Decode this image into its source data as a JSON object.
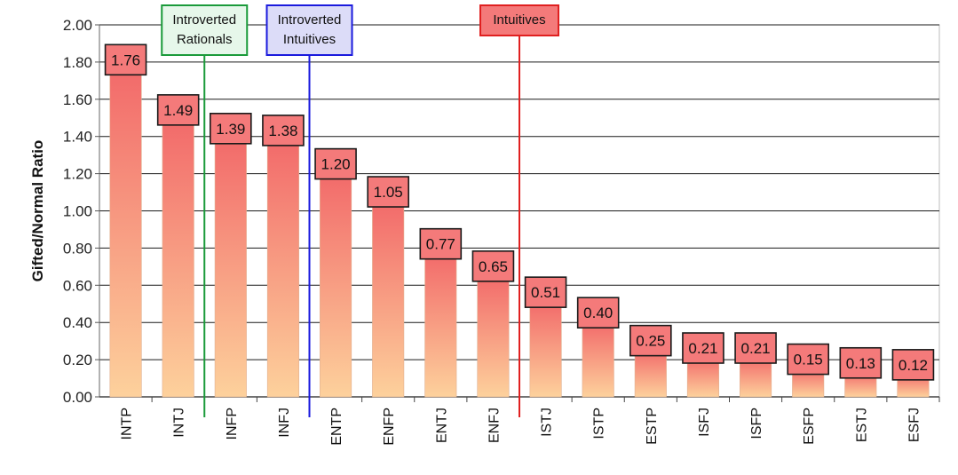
{
  "chart_data": {
    "type": "bar",
    "title": "",
    "xlabel": "",
    "ylabel": "Gifted/Normal Ratio",
    "ylim": [
      0,
      2.0
    ],
    "yticks": [
      "0.00",
      "0.20",
      "0.40",
      "0.60",
      "0.80",
      "1.00",
      "1.20",
      "1.40",
      "1.60",
      "1.80",
      "2.00"
    ],
    "grid": true,
    "categories": [
      "INTP",
      "INTJ",
      "INFP",
      "INFJ",
      "ENTP",
      "ENFP",
      "ENTJ",
      "ENFJ",
      "ISTJ",
      "ISTP",
      "ESTP",
      "ISFJ",
      "ISFP",
      "ESFP",
      "ESTJ",
      "ESFJ"
    ],
    "values": [
      1.76,
      1.49,
      1.39,
      1.38,
      1.2,
      1.05,
      0.77,
      0.65,
      0.51,
      0.4,
      0.25,
      0.21,
      0.21,
      0.15,
      0.13,
      0.12
    ],
    "value_labels": [
      "1.76",
      "1.49",
      "1.39",
      "1.38",
      "1.20",
      "1.05",
      "0.77",
      "0.65",
      "0.51",
      "0.40",
      "0.25",
      "0.21",
      "0.21",
      "0.15",
      "0.13",
      "0.12"
    ],
    "annotations": [
      {
        "text": "Introverted\nRationals",
        "after_category": "INTJ",
        "color": "#1a9a3a",
        "fill": "#e6f7ea"
      },
      {
        "text": "Introverted\nIntuitives",
        "after_category": "INFJ",
        "color": "#1a1add",
        "fill": "#dcdcf8"
      },
      {
        "text": "Intuitives",
        "after_category": "ENFJ",
        "color": "#e02020",
        "fill": "#f47a7a"
      }
    ],
    "colors": {
      "bar_top": "#f26a6a",
      "bar_bottom": "#fdd19c",
      "label_fill": "#f47a7a",
      "label_border": "#1a1a1a",
      "gridline": "#1a1a1a",
      "plot_background": "#ffffff"
    }
  }
}
